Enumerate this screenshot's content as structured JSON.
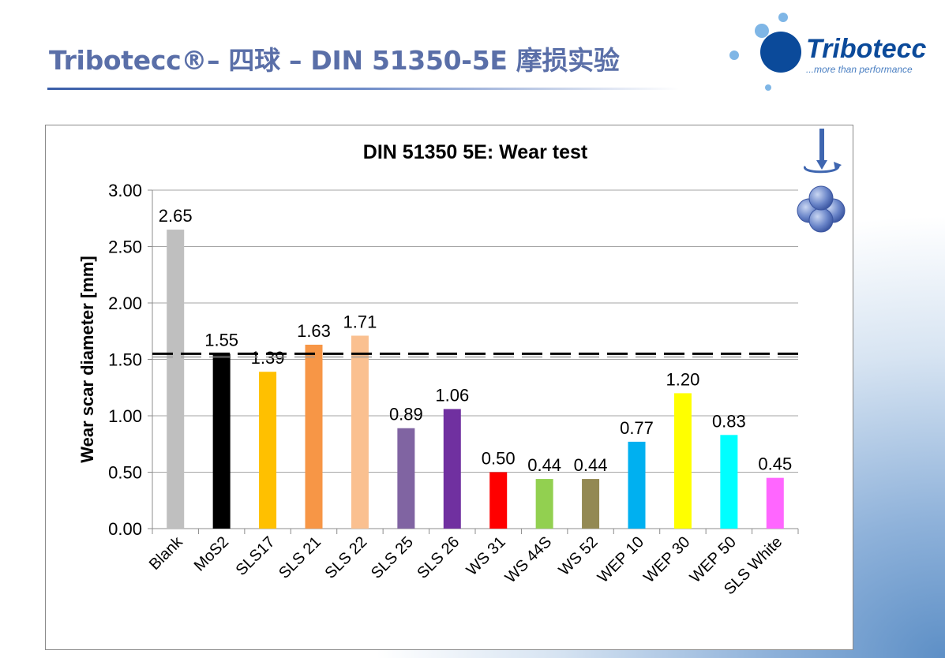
{
  "slide": {
    "title": "Tribotecc®– 四球 – DIN 51350-5E 摩损实验"
  },
  "logo": {
    "brand": "Tribotecc",
    "tagline": "...more than performance",
    "colors": {
      "dark": "#0b4a9a",
      "light": "#7fb6e6"
    }
  },
  "icon": {
    "name": "four-ball-rotation-icon"
  },
  "chart_data": {
    "type": "bar",
    "title": "DIN 51350 5E: Wear test",
    "xlabel": "",
    "ylabel": "Wear scar diameter [mm]",
    "ylim": [
      0,
      3
    ],
    "yticks": [
      "0.00",
      "0.50",
      "1.00",
      "1.50",
      "2.00",
      "2.50",
      "3.00"
    ],
    "grid": true,
    "legend": "none",
    "categories": [
      "Blank",
      "MoS2",
      "SLS17",
      "SLS 21",
      "SLS 22",
      "SLS 25",
      "SLS 26",
      "WS 31",
      "WS 44S",
      "WS 52",
      "WEP 10",
      "WEP 30",
      "WEP 50",
      "SLS White"
    ],
    "values": [
      2.65,
      1.55,
      1.39,
      1.63,
      1.71,
      0.89,
      1.06,
      0.5,
      0.44,
      0.44,
      0.77,
      1.2,
      0.83,
      0.45
    ],
    "value_labels": [
      "2.65",
      "1.55",
      "1.39",
      "1.63",
      "1.71",
      "0.89",
      "1.06",
      "0.50",
      "0.44",
      "0.44",
      "0.77",
      "1.20",
      "0.83",
      "0.45"
    ],
    "colors": [
      "#bfbfbf",
      "#000000",
      "#ffc000",
      "#f79646",
      "#fac090",
      "#8064a2",
      "#7030a0",
      "#ff0000",
      "#92d050",
      "#938953",
      "#00b0f0",
      "#ffff00",
      "#00ffff",
      "#ff66ff"
    ],
    "reference_line": {
      "value": 1.55,
      "style": "dashed",
      "color": "#000000"
    }
  }
}
